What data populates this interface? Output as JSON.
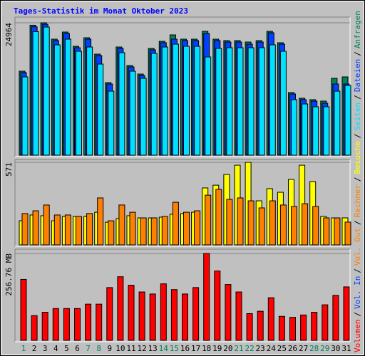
{
  "chart_data": [
    {
      "type": "bar",
      "title": "Tages-Statistik im Monat Oktober 2023",
      "categories": [
        "1",
        "2",
        "3",
        "4",
        "5",
        "6",
        "7",
        "8",
        "9",
        "10",
        "11",
        "12",
        "13",
        "14",
        "15",
        "16",
        "17",
        "18",
        "19",
        "20",
        "21",
        "22",
        "23",
        "24",
        "25",
        "26",
        "27",
        "28",
        "29",
        "30",
        "31"
      ],
      "category_colors": [
        "#00805c",
        "#000000",
        "#000000",
        "#000000",
        "#000000",
        "#000000",
        "#00805c",
        "#00805c",
        "#000000",
        "#000000",
        "#000000",
        "#000000",
        "#000000",
        "#00805c",
        "#00805c",
        "#000000",
        "#000000",
        "#000000",
        "#000000",
        "#000000",
        "#00805c",
        "#00805c",
        "#000000",
        "#000000",
        "#000000",
        "#000000",
        "#000000",
        "#00805c",
        "#00805c",
        "#000000",
        "#000000"
      ],
      "legend_separator": "/",
      "ylim": [
        0,
        24964
      ],
      "yticks": [
        24964
      ],
      "series": [
        {
          "name": "Anfragen",
          "color": "#00805c",
          "values": [
            15836,
            24500,
            24964,
            21875,
            23217,
            20533,
            22143,
            19056,
            13688,
            20398,
            16909,
            15299,
            20130,
            21472,
            22680,
            21875,
            21875,
            23351,
            21875,
            21606,
            21606,
            21338,
            21606,
            23351,
            21204,
            11810,
            10736,
            10468,
            10199,
            14494,
            14762
          ]
        },
        {
          "name": "Dateien",
          "color": "#0040ff",
          "values": [
            15567,
            24200,
            24690,
            21606,
            22948,
            20264,
            21875,
            18788,
            13420,
            20130,
            16641,
            15030,
            19862,
            21204,
            21875,
            21606,
            21606,
            22948,
            21606,
            21338,
            21338,
            20935,
            21338,
            23082,
            20935,
            11541,
            10468,
            10199,
            9797,
            13420,
            13420
          ]
        },
        {
          "name": "Seiten",
          "color": "#00e0ff",
          "values": [
            14762,
            23300,
            24156,
            20801,
            21875,
            19593,
            20398,
            17178,
            12078,
            19325,
            15836,
            14494,
            19191,
            20398,
            20935,
            20533,
            20533,
            18520,
            20130,
            20264,
            20264,
            20264,
            20264,
            20801,
            19593,
            10468,
            9662,
            9126,
            9126,
            12078,
            13152
          ]
        }
      ]
    },
    {
      "type": "bar",
      "legend_separator": "/",
      "ylim": [
        0,
        571
      ],
      "yticks": [
        571
      ],
      "series": [
        {
          "name": "Besuche",
          "color": "#ffff00",
          "values": [
            167,
            207,
            202,
            167,
            197,
            197,
            197,
            226,
            157,
            182,
            202,
            187,
            187,
            192,
            212,
            217,
            226,
            394,
            413,
            487,
            551,
            571,
            305,
            389,
            364,
            453,
            551,
            438,
            197,
            187,
            187
          ]
        },
        {
          "name": "Rechner",
          "color": "#ff8000",
          "values": [
            217,
            236,
            276,
            207,
            207,
            197,
            217,
            325,
            167,
            276,
            226,
            187,
            187,
            197,
            295,
            226,
            236,
            344,
            384,
            315,
            325,
            305,
            256,
            305,
            276,
            266,
            285,
            266,
            187,
            187,
            158
          ]
        }
      ]
    },
    {
      "type": "bar",
      "legend_separator": "/",
      "ylim": [
        0,
        256.76
      ],
      "yticks": [
        {
          "value": 256.76,
          "label": "256.76 MB"
        }
      ],
      "extra_legend": [
        {
          "text": "Vol. In",
          "color": "#0040ff"
        },
        {
          "text": "Vol. Out",
          "color": "#ff8000"
        }
      ],
      "series": [
        {
          "name": "Volumen",
          "color": "#ff0000",
          "values": [
            180,
            73,
            83,
            94,
            94,
            94,
            107,
            107,
            156,
            188,
            163,
            143,
            137,
            167,
            150,
            137,
            156,
            256.76,
            205,
            165,
            143,
            79,
            86,
            126,
            71,
            68,
            75,
            83,
            105,
            133,
            158
          ]
        }
      ]
    }
  ]
}
